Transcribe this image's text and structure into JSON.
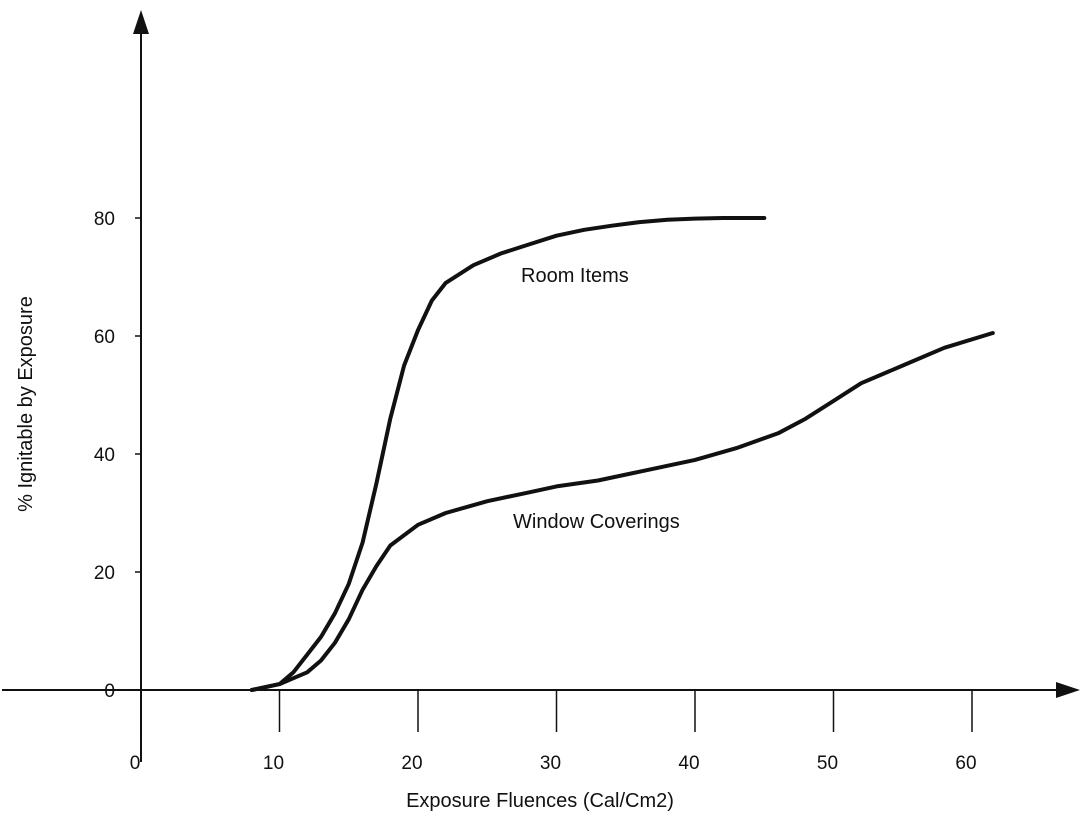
{
  "chart_data": {
    "type": "line",
    "title": "",
    "xlabel": "Exposure Fluences (Cal/Cm2)",
    "ylabel": "% Ignitable by Exposure",
    "xlim": [
      -10,
      67
    ],
    "ylim": [
      -10,
      100
    ],
    "x_ticks": [
      0,
      10,
      20,
      30,
      40,
      50,
      60
    ],
    "y_ticks": [
      0,
      20,
      40,
      60,
      80
    ],
    "grid": false,
    "line_color": "#111111",
    "series": [
      {
        "name": "Room Items",
        "points": [
          [
            8,
            0
          ],
          [
            10,
            1
          ],
          [
            11,
            3
          ],
          [
            12,
            6
          ],
          [
            13,
            9
          ],
          [
            14,
            13
          ],
          [
            15,
            18
          ],
          [
            16,
            25
          ],
          [
            17,
            35
          ],
          [
            18,
            46
          ],
          [
            19,
            55
          ],
          [
            20,
            61
          ],
          [
            21,
            66
          ],
          [
            22,
            69
          ],
          [
            24,
            72
          ],
          [
            26,
            74
          ],
          [
            28,
            75.5
          ],
          [
            30,
            77
          ],
          [
            32,
            78
          ],
          [
            34,
            78.7
          ],
          [
            36,
            79.3
          ],
          [
            38,
            79.7
          ],
          [
            40,
            79.9
          ],
          [
            42,
            80
          ],
          [
            45,
            80
          ]
        ]
      },
      {
        "name": "Window Coverings",
        "points": [
          [
            8,
            0
          ],
          [
            10,
            1
          ],
          [
            11,
            2
          ],
          [
            12,
            3
          ],
          [
            13,
            5
          ],
          [
            14,
            8
          ],
          [
            15,
            12
          ],
          [
            16,
            17
          ],
          [
            17,
            21
          ],
          [
            18,
            24.5
          ],
          [
            20,
            28
          ],
          [
            22,
            30
          ],
          [
            25,
            32
          ],
          [
            28,
            33.5
          ],
          [
            30,
            34.5
          ],
          [
            33,
            35.5
          ],
          [
            36,
            37
          ],
          [
            40,
            39
          ],
          [
            43,
            41
          ],
          [
            46,
            43.5
          ],
          [
            48,
            46
          ],
          [
            50,
            49
          ],
          [
            52,
            52
          ],
          [
            55,
            55
          ],
          [
            58,
            58
          ],
          [
            61.5,
            60.5
          ]
        ]
      }
    ]
  }
}
